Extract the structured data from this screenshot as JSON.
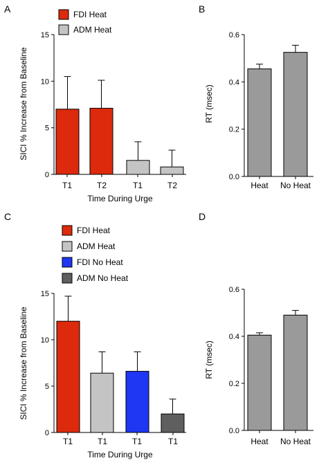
{
  "chart_data": [
    {
      "panel": "A",
      "type": "bar",
      "categories": [
        "T1",
        "T2",
        "T1",
        "T2"
      ],
      "series": [
        {
          "name": "FDI Heat",
          "color": "#dd2a0c",
          "indices": [
            0,
            1
          ]
        },
        {
          "name": "ADM Heat",
          "color": "#c4c4c4",
          "indices": [
            2,
            3
          ]
        }
      ],
      "values": [
        7.0,
        7.1,
        1.5,
        0.8
      ],
      "errors": [
        3.5,
        3.0,
        2.0,
        1.8
      ],
      "colors": [
        "#dd2a0c",
        "#dd2a0c",
        "#c4c4c4",
        "#c4c4c4"
      ],
      "ylabel": "SICI % Increase from Baseline",
      "xlabel": "Time During Urge",
      "ylim": [
        0,
        15
      ],
      "yticks": [
        "0",
        "5",
        "10",
        "15"
      ],
      "ytick_values": [
        0,
        5,
        10,
        15
      ]
    },
    {
      "panel": "B",
      "type": "bar",
      "categories": [
        "Heat",
        "No Heat"
      ],
      "values": [
        0.455,
        0.525
      ],
      "errors": [
        0.02,
        0.03
      ],
      "colors": [
        "#9a9a9a",
        "#9a9a9a"
      ],
      "ylabel": "RT (msec)",
      "xlabel": "",
      "ylim": [
        0,
        0.6
      ],
      "yticks": [
        "0.0",
        "0.2",
        "0.4",
        "0.6"
      ],
      "ytick_values": [
        0,
        0.2,
        0.4,
        0.6
      ]
    },
    {
      "panel": "C",
      "type": "bar",
      "categories": [
        "T1",
        "T1",
        "T1",
        "T1"
      ],
      "series": [
        {
          "name": "FDI Heat",
          "color": "#dd2a0c",
          "indices": [
            0
          ]
        },
        {
          "name": "ADM Heat",
          "color": "#c4c4c4",
          "indices": [
            1
          ]
        },
        {
          "name": "FDI No Heat",
          "color": "#1f36f2",
          "indices": [
            2
          ]
        },
        {
          "name": "ADM No Heat",
          "color": "#5f5f5f",
          "indices": [
            3
          ]
        }
      ],
      "values": [
        12.0,
        6.4,
        6.6,
        2.0
      ],
      "errors": [
        2.7,
        2.3,
        2.1,
        1.6
      ],
      "colors": [
        "#dd2a0c",
        "#c4c4c4",
        "#1f36f2",
        "#5f5f5f"
      ],
      "ylabel": "SICI % Increase from Baseline",
      "xlabel": "Time During Urge",
      "ylim": [
        0,
        15
      ],
      "yticks": [
        "0",
        "5",
        "10",
        "15"
      ],
      "ytick_values": [
        0,
        5,
        10,
        15
      ]
    },
    {
      "panel": "D",
      "type": "bar",
      "categories": [
        "Heat",
        "No Heat"
      ],
      "values": [
        0.405,
        0.49
      ],
      "errors": [
        0.01,
        0.02
      ],
      "colors": [
        "#9a9a9a",
        "#9a9a9a"
      ],
      "ylabel": "RT (msec)",
      "xlabel": "",
      "ylim": [
        0,
        0.6
      ],
      "yticks": [
        "0.0",
        "0.2",
        "0.4",
        "0.6"
      ],
      "ytick_values": [
        0,
        0.2,
        0.4,
        0.6
      ]
    }
  ]
}
